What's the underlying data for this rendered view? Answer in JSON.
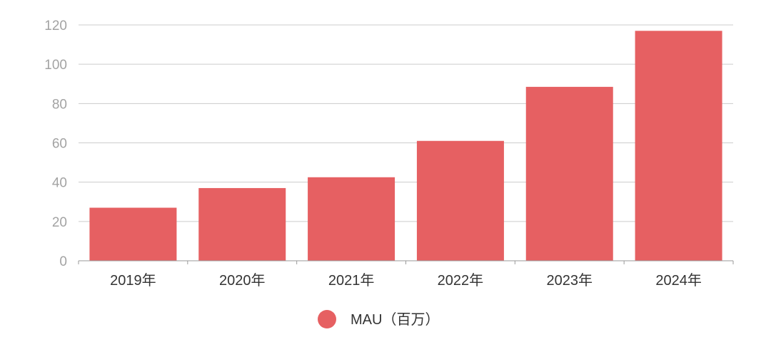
{
  "chart_data": {
    "type": "bar",
    "categories": [
      "2019年",
      "2020年",
      "2021年",
      "2022年",
      "2023年",
      "2024年"
    ],
    "series": [
      {
        "name": "MAU（百万）",
        "values": [
          27,
          37,
          42.5,
          61,
          88.5,
          117
        ]
      }
    ],
    "ylim": [
      0,
      120
    ],
    "yticks": [
      0,
      20,
      40,
      60,
      80,
      100,
      120
    ],
    "grid": true,
    "legend": "bottom-center",
    "colors": {
      "bar": "#e66062",
      "grid": "#cccccc",
      "tick_text": "#a3a3a3",
      "category_text": "#333333"
    }
  }
}
